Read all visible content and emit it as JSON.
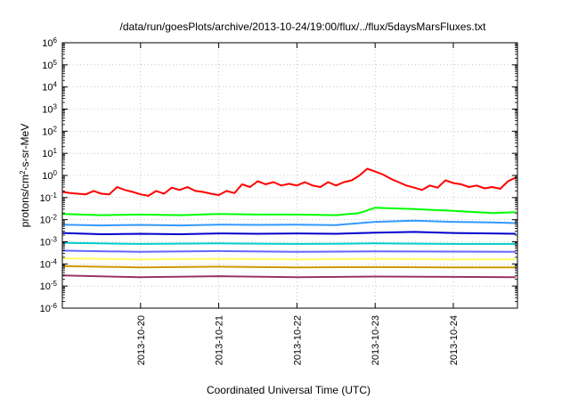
{
  "chart_data": {
    "type": "line",
    "title": "/data/run/goesPlots/archive/2013-10-24/19:00/flux/../flux/5daysMarsFluxes.txt",
    "xlabel": "Coordinated Universal Time (UTC)",
    "ylabel_main": "protons/cm",
    "ylabel_sup": "2",
    "ylabel_tail": "-s-sr-MeV",
    "yscale": "log",
    "ylim": [
      1e-06,
      1000000.0
    ],
    "xlim": [
      0,
      5.82
    ],
    "grid": true,
    "y_ticks": [
      {
        "base": "10",
        "exp": "-6"
      },
      {
        "base": "10",
        "exp": "-5"
      },
      {
        "base": "10",
        "exp": "-4"
      },
      {
        "base": "10",
        "exp": "-3"
      },
      {
        "base": "10",
        "exp": "-2"
      },
      {
        "base": "10",
        "exp": "-1"
      },
      {
        "base": "10",
        "exp": "0"
      },
      {
        "base": "10",
        "exp": "1"
      },
      {
        "base": "10",
        "exp": "2"
      },
      {
        "base": "10",
        "exp": "3"
      },
      {
        "base": "10",
        "exp": "4"
      },
      {
        "base": "10",
        "exp": "5"
      },
      {
        "base": "10",
        "exp": "6"
      }
    ],
    "x_ticks": [
      {
        "label": "2013-10-20",
        "x": 1.0
      },
      {
        "label": "2013-10-21",
        "x": 2.0
      },
      {
        "label": "2013-10-22",
        "x": 3.0
      },
      {
        "label": "2013-10-23",
        "x": 4.0
      },
      {
        "label": "2013-10-24",
        "x": 5.0
      }
    ],
    "series": [
      {
        "color": "#ff0000",
        "x": [
          0.0,
          0.1,
          0.2,
          0.3,
          0.4,
          0.5,
          0.6,
          0.7,
          0.8,
          0.9,
          1.0,
          1.1,
          1.2,
          1.3,
          1.4,
          1.5,
          1.6,
          1.7,
          1.8,
          1.9,
          2.0,
          2.1,
          2.2,
          2.3,
          2.4,
          2.5,
          2.6,
          2.7,
          2.8,
          2.9,
          3.0,
          3.1,
          3.2,
          3.3,
          3.4,
          3.5,
          3.6,
          3.7,
          3.8,
          3.9,
          4.0,
          4.1,
          4.2,
          4.3,
          4.4,
          4.5,
          4.6,
          4.7,
          4.8,
          4.9,
          5.0,
          5.1,
          5.2,
          5.3,
          5.4,
          5.5,
          5.6,
          5.7,
          5.8
        ],
        "y": [
          0.18,
          0.16,
          0.15,
          0.14,
          0.2,
          0.15,
          0.14,
          0.3,
          0.22,
          0.18,
          0.14,
          0.12,
          0.2,
          0.15,
          0.28,
          0.22,
          0.3,
          0.2,
          0.18,
          0.15,
          0.13,
          0.2,
          0.16,
          0.4,
          0.3,
          0.55,
          0.4,
          0.5,
          0.35,
          0.42,
          0.35,
          0.5,
          0.35,
          0.3,
          0.5,
          0.35,
          0.5,
          0.6,
          1.0,
          2.0,
          1.5,
          1.1,
          0.7,
          0.5,
          0.35,
          0.28,
          0.22,
          0.35,
          0.28,
          0.6,
          0.45,
          0.4,
          0.3,
          0.35,
          0.26,
          0.3,
          0.25,
          0.55,
          0.8
        ]
      },
      {
        "color": "#00ff00",
        "x": [
          0.0,
          0.5,
          1.0,
          1.5,
          2.0,
          2.5,
          3.0,
          3.5,
          3.8,
          4.0,
          4.5,
          5.0,
          5.5,
          5.8
        ],
        "y": [
          0.018,
          0.016,
          0.017,
          0.016,
          0.018,
          0.017,
          0.017,
          0.016,
          0.02,
          0.035,
          0.03,
          0.025,
          0.02,
          0.022
        ]
      },
      {
        "color": "#3399ff",
        "x": [
          0.0,
          0.5,
          1.0,
          1.5,
          2.0,
          2.5,
          3.0,
          3.5,
          4.0,
          4.5,
          5.0,
          5.5,
          5.8
        ],
        "y": [
          0.006,
          0.0055,
          0.0058,
          0.0055,
          0.006,
          0.0058,
          0.006,
          0.0057,
          0.008,
          0.009,
          0.008,
          0.0075,
          0.007
        ]
      },
      {
        "color": "#0000cc",
        "x": [
          0.0,
          0.5,
          1.0,
          1.5,
          2.0,
          2.5,
          3.0,
          3.5,
          4.0,
          4.5,
          5.0,
          5.5,
          5.8
        ],
        "y": [
          0.0025,
          0.0022,
          0.0023,
          0.0022,
          0.0024,
          0.0023,
          0.0024,
          0.0023,
          0.0026,
          0.0028,
          0.0025,
          0.0024,
          0.0023
        ]
      },
      {
        "color": "#00cccc",
        "x": [
          0.0,
          1.0,
          2.0,
          3.0,
          4.0,
          5.0,
          5.8
        ],
        "y": [
          0.0009,
          0.0008,
          0.00085,
          0.0008,
          0.00085,
          0.0008,
          0.0008
        ]
      },
      {
        "color": "#6666ff",
        "x": [
          0.0,
          1.0,
          2.0,
          3.0,
          4.0,
          5.0,
          5.8
        ],
        "y": [
          0.0004,
          0.00035,
          0.00038,
          0.00035,
          0.00037,
          0.00036,
          0.00035
        ]
      },
      {
        "color": "#ffff66",
        "x": [
          0.0,
          1.0,
          2.0,
          3.0,
          4.0,
          5.0,
          5.8
        ],
        "y": [
          0.00018,
          0.00016,
          0.00017,
          0.00016,
          0.00017,
          0.00016,
          0.00016
        ]
      },
      {
        "color": "#cc9900",
        "x": [
          0.0,
          1.0,
          2.0,
          3.0,
          4.0,
          5.0,
          5.8
        ],
        "y": [
          8e-05,
          7e-05,
          7.5e-05,
          7e-05,
          7.2e-05,
          7e-05,
          7e-05
        ]
      },
      {
        "color": "#993366",
        "x": [
          0.0,
          1.0,
          2.0,
          3.0,
          4.0,
          5.0,
          5.8
        ],
        "y": [
          3e-05,
          2.5e-05,
          2.8e-05,
          2.5e-05,
          2.7e-05,
          2.6e-05,
          2.5e-05
        ]
      }
    ]
  }
}
